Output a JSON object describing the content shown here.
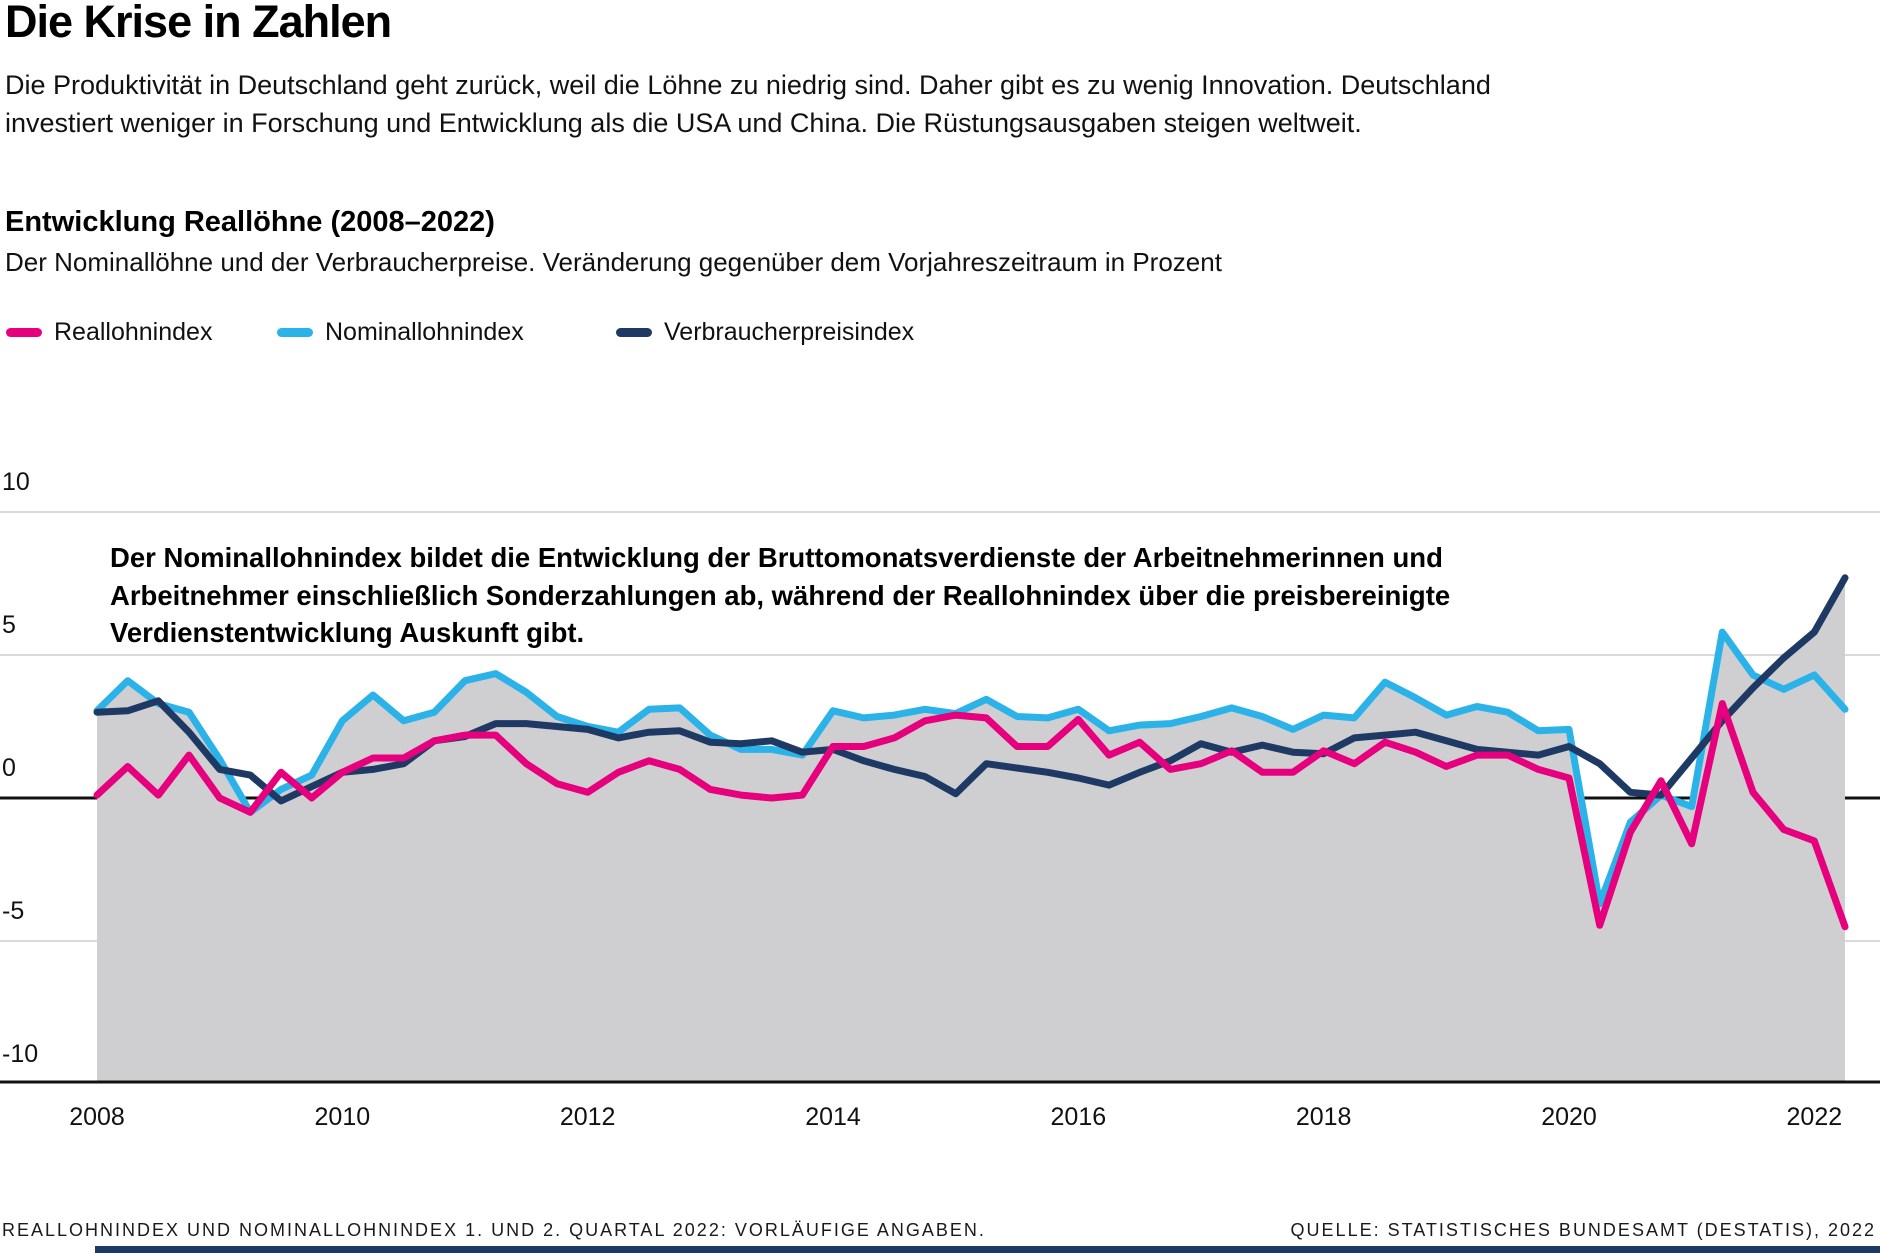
{
  "page": {
    "title": "Die Krise in Zahlen",
    "intro_lines": [
      "Die Produktivität in Deutschland geht zurück, weil die Löhne zu niedrig sind. Daher gibt es zu wenig Innovation. Deutschland",
      "investiert weniger in Forschung und Entwicklung als die USA und China. Die Rüstungsausgaben steigen weltweit."
    ]
  },
  "chart": {
    "heading": "Entwicklung Reallöhne (2008–2022)",
    "subheading": "Der Nominallöhne und der Verbraucherpreise. Veränderung gegenüber dem Vorjahreszeitraum in Prozent",
    "annotation_lines": [
      "Der Nominallohnindex bildet die Entwicklung der Bruttomonatsverdienste der Arbeitnehmerinnen und",
      "Arbeitnehmer einschließlich Sonderzahlungen ab, während der Reallohnindex über die preisbereinigte",
      "Verdienstentwicklung Auskunft gibt."
    ],
    "footnote": "REALLOHNINDEX UND NOMINALLOHNINDEX 1. UND 2. QUARTAL 2022: VORLÄUFIGE ANGABEN.",
    "source": "QUELLE: STATISTISCHES BUNDESAMT (DESTATIS), 2022"
  },
  "chart_data": {
    "type": "line",
    "title": "Entwicklung Reallöhne (2008–2022)",
    "subtitle": "Der Nominallöhne und der Verbraucherpreise. Veränderung gegenüber dem Vorjahreszeitraum in Prozent",
    "unit": "Prozent (Veränderung gegenüber dem Vorjahreszeitraum)",
    "x_start": "2008 Q1",
    "x_end": "2022 Q2",
    "points_per_year": 4,
    "x_ticks": [
      "2008",
      "2010",
      "2012",
      "2014",
      "2016",
      "2018",
      "2020",
      "2022"
    ],
    "y_ticks": [
      10,
      5,
      0,
      -5,
      -10
    ],
    "ylim": [
      -10,
      10
    ],
    "grid": "horizontal",
    "legend_position": "top",
    "area_fill_color": "#cfcfd2",
    "colors": {
      "background": "#ffffff",
      "gridline": "#dadada",
      "axis": "#111111"
    },
    "series": [
      {
        "name": "Reallohnindex",
        "color": "#e6007e",
        "values": [
          0.1,
          1.1,
          0.1,
          1.5,
          0.0,
          -0.5,
          0.9,
          0.0,
          0.9,
          1.4,
          1.4,
          2.0,
          2.2,
          2.2,
          1.2,
          0.5,
          0.2,
          0.9,
          1.3,
          1.0,
          0.3,
          0.1,
          0.0,
          0.1,
          1.8,
          1.8,
          2.1,
          2.7,
          2.9,
          2.8,
          1.8,
          1.8,
          2.75,
          1.5,
          1.95,
          1.0,
          1.2,
          1.65,
          0.9,
          0.9,
          1.65,
          1.2,
          1.95,
          1.6,
          1.1,
          1.5,
          1.5,
          1.0,
          0.7,
          -4.45,
          -1.2,
          0.6,
          -1.6,
          3.3,
          0.2,
          -1.1,
          -1.5,
          -4.5
        ]
      },
      {
        "name": "Nominallohnindex",
        "color": "#2bb2e8",
        "values": [
          3.05,
          4.1,
          3.3,
          3.0,
          1.35,
          -0.5,
          0.3,
          0.8,
          2.7,
          3.6,
          2.7,
          3.0,
          4.1,
          4.35,
          3.7,
          2.85,
          2.5,
          2.3,
          3.1,
          3.15,
          2.2,
          1.7,
          1.7,
          1.5,
          3.05,
          2.8,
          2.9,
          3.1,
          2.95,
          3.45,
          2.85,
          2.8,
          3.1,
          2.35,
          2.55,
          2.6,
          2.85,
          3.15,
          2.85,
          2.4,
          2.9,
          2.8,
          4.05,
          3.5,
          2.9,
          3.2,
          3.0,
          2.35,
          2.4,
          -3.7,
          -0.85,
          0.1,
          -0.3,
          5.8,
          4.3,
          3.8,
          4.3,
          3.1
        ]
      },
      {
        "name": "Verbraucherpreisindex",
        "color": "#1e3a64",
        "values": [
          3.0,
          3.05,
          3.4,
          2.3,
          1.0,
          0.8,
          -0.1,
          0.4,
          0.9,
          1.0,
          1.2,
          2.0,
          2.15,
          2.6,
          2.6,
          2.5,
          2.4,
          2.1,
          2.3,
          2.35,
          1.95,
          1.9,
          2.0,
          1.6,
          1.7,
          1.3,
          1.0,
          0.75,
          0.15,
          1.2,
          1.05,
          0.9,
          0.7,
          0.45,
          0.9,
          1.3,
          1.9,
          1.6,
          1.85,
          1.6,
          1.55,
          2.1,
          2.2,
          2.3,
          2.0,
          1.7,
          1.6,
          1.5,
          1.8,
          1.2,
          0.2,
          0.1,
          1.4,
          2.7,
          3.85,
          4.9,
          5.8,
          7.7
        ]
      }
    ]
  }
}
